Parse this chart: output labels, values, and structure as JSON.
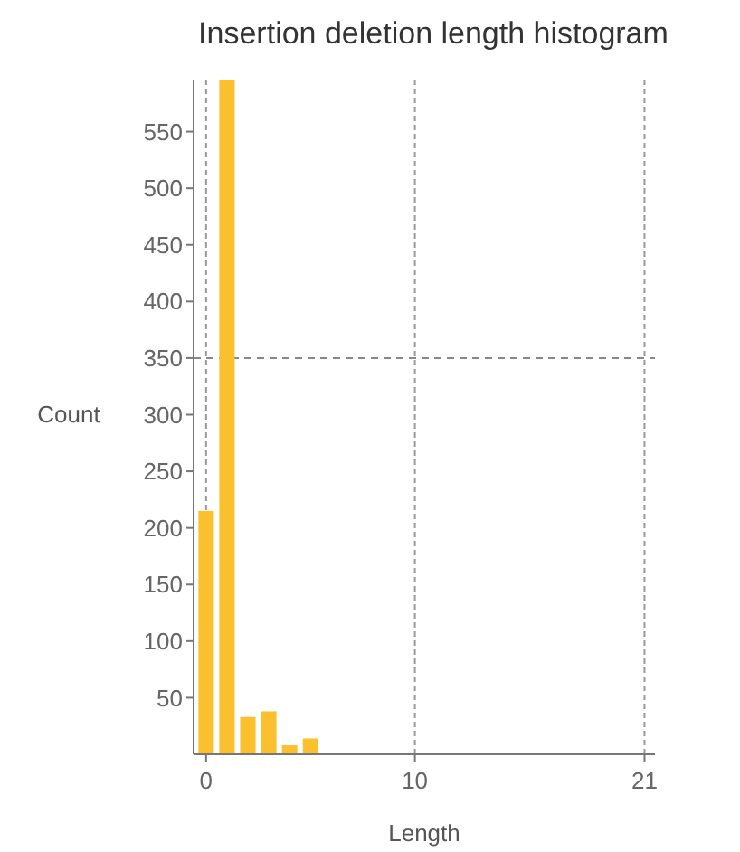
{
  "chart_data": {
    "type": "histogram",
    "title": "Insertion deletion length histogram",
    "xlabel": "Length",
    "ylabel": "Count",
    "bins": [
      -0.5,
      0.5,
      1.5,
      2.5,
      3.5,
      4.5,
      5.5
    ],
    "values": [
      215,
      596,
      33,
      38,
      8,
      14
    ],
    "color": "#fbc02d",
    "xlim": [
      -0.6,
      21.5
    ],
    "xticks": [
      0,
      10,
      21
    ],
    "ylim": [
      0,
      596
    ],
    "yticks": [
      50,
      100,
      150,
      200,
      250,
      300,
      350,
      400,
      450,
      500,
      550
    ],
    "grid": "x",
    "ref_lines": [
      {
        "axis": "y",
        "value": 350,
        "line_style": "dashed"
      }
    ]
  }
}
